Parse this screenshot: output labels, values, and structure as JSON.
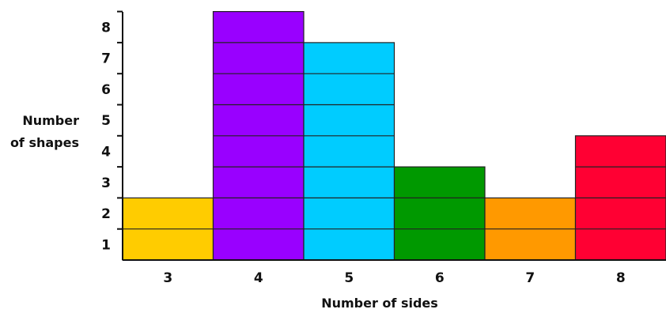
{
  "chart_data": {
    "type": "bar",
    "xlabel": "Number of sides",
    "ylabel_lines": [
      "Number",
      "of shapes"
    ],
    "categories": [
      "3",
      "4",
      "5",
      "6",
      "7",
      "8"
    ],
    "values": [
      2,
      8,
      7,
      3,
      2,
      4
    ],
    "colors": [
      "#FFCC00",
      "#9900FF",
      "#00CCFF",
      "#009900",
      "#FF9900",
      "#FF0033"
    ],
    "y_ticks": [
      "1",
      "2",
      "3",
      "4",
      "5",
      "6",
      "7",
      "8"
    ],
    "ylim": [
      0,
      8
    ],
    "grid": false,
    "bar_unit_lines": true
  }
}
